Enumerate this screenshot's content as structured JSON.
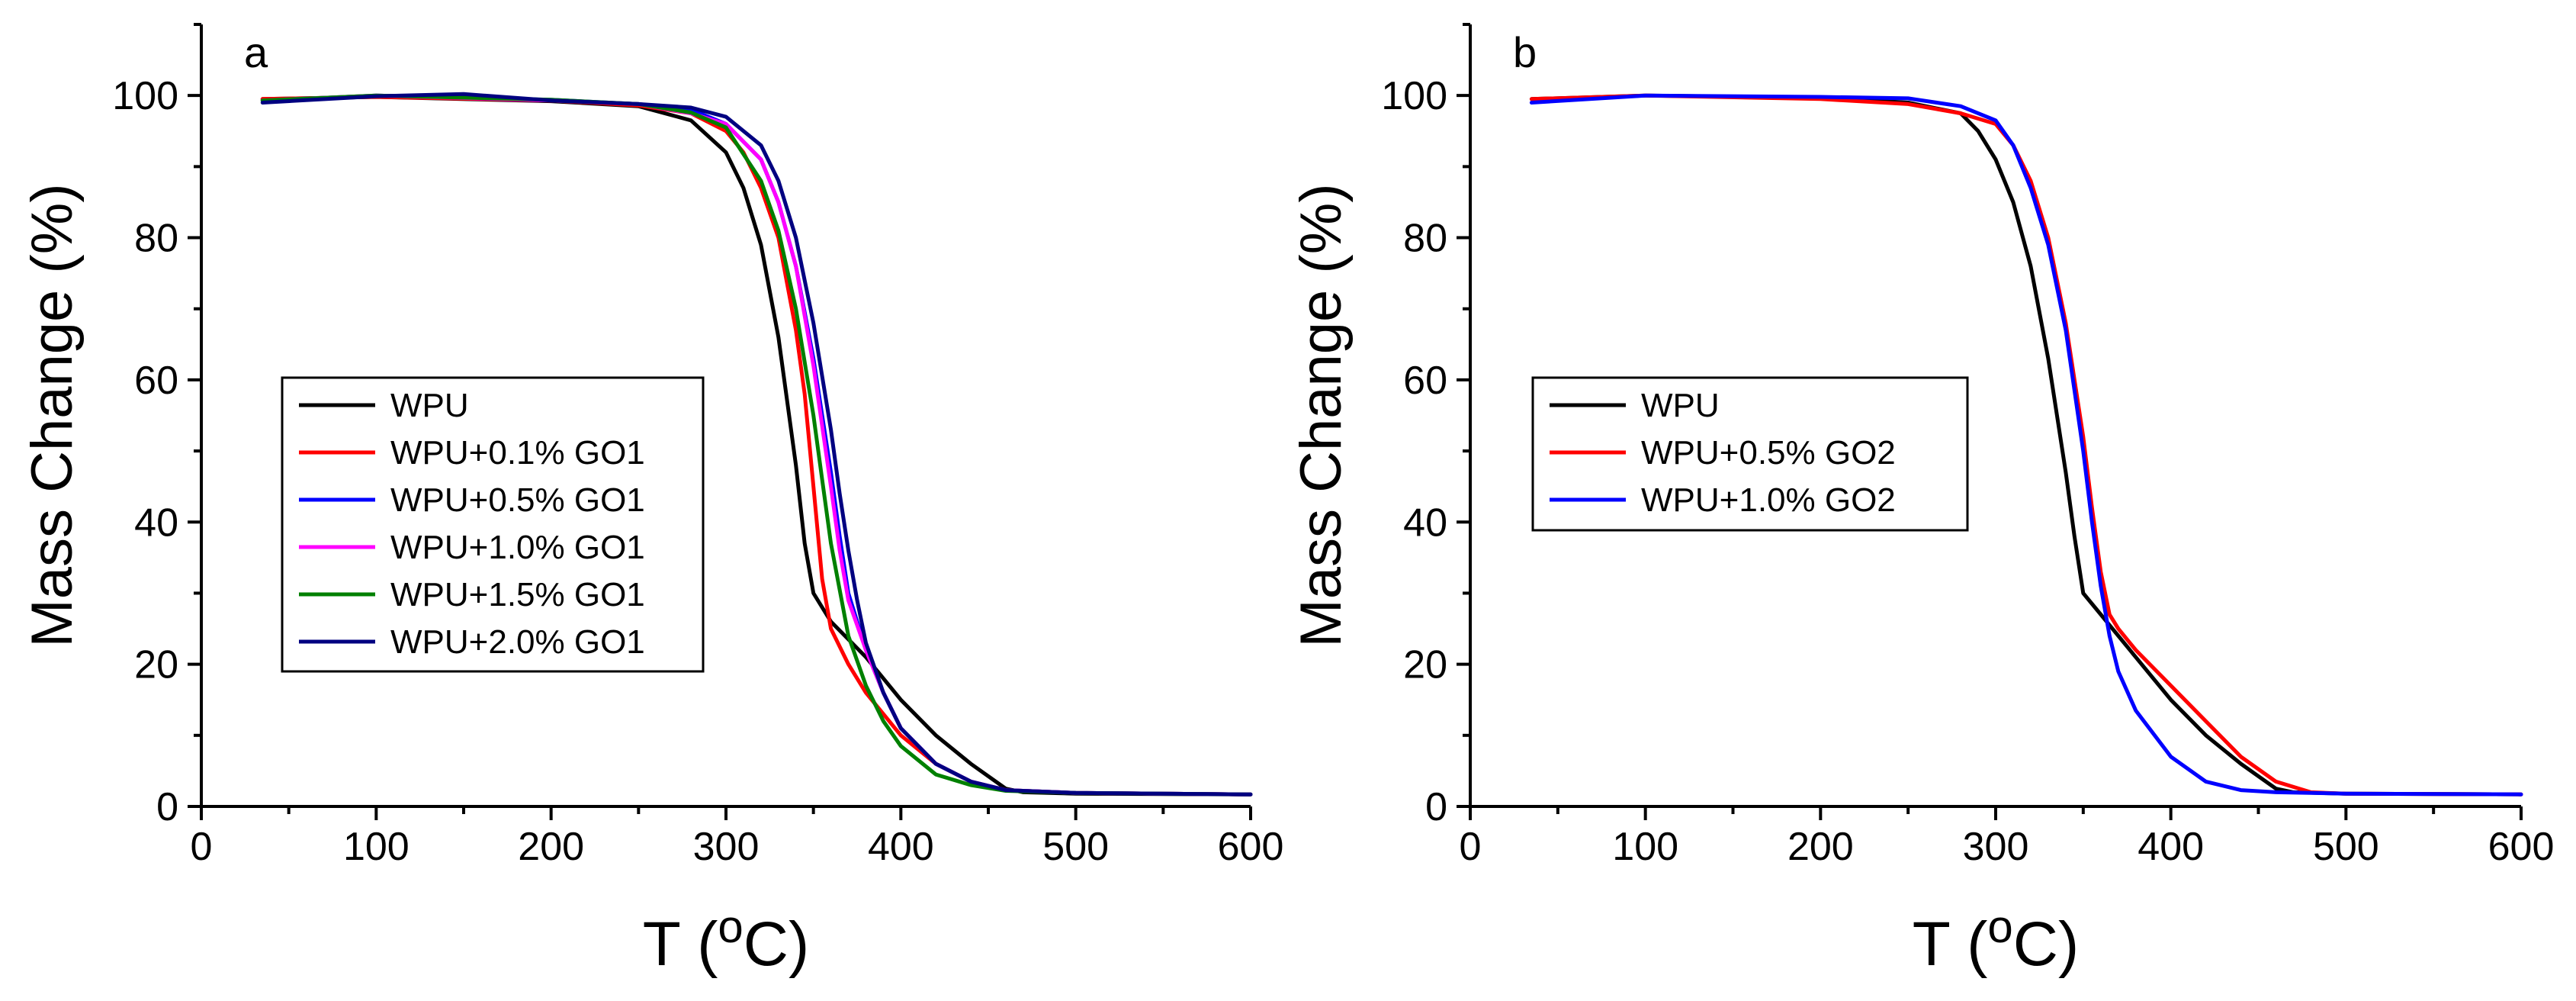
{
  "chart_data": [
    {
      "type": "line",
      "panel_label": "a",
      "xlabel": "T (oC)",
      "xlabel_parts": {
        "base": "T (",
        "sup": "o",
        "tail": "C)"
      },
      "ylabel": "Mass Change (%)",
      "xlim": [
        0,
        600
      ],
      "ylim": [
        0,
        110
      ],
      "xticks": [
        0,
        100,
        200,
        300,
        400,
        500,
        600
      ],
      "yticks": [
        0,
        20,
        40,
        60,
        80,
        100
      ],
      "grid": false,
      "legend_position": "center-left",
      "series": [
        {
          "name": "WPU",
          "color": "#000000",
          "x": [
            35,
            100,
            200,
            250,
            280,
            300,
            310,
            320,
            330,
            340,
            345,
            350,
            360,
            380,
            400,
            420,
            440,
            460,
            470,
            500,
            600
          ],
          "y": [
            99.5,
            99.8,
            99.2,
            98.5,
            96.5,
            92,
            87,
            79,
            66,
            48,
            37,
            30,
            26,
            21,
            15,
            10,
            6,
            2.5,
            2,
            1.8,
            1.7
          ]
        },
        {
          "name": "WPU+0.1% GO1",
          "color": "#ff0000",
          "x": [
            35,
            100,
            200,
            250,
            280,
            300,
            310,
            320,
            330,
            340,
            345,
            350,
            355,
            360,
            370,
            380,
            400,
            420,
            440,
            460,
            500,
            600
          ],
          "y": [
            99.5,
            99.8,
            99.3,
            98.6,
            97.5,
            95,
            92,
            87,
            80,
            67,
            58,
            45,
            32,
            25,
            20,
            16,
            10,
            6,
            3.5,
            2.3,
            1.9,
            1.7
          ]
        },
        {
          "name": "WPU+0.5% GO1",
          "color": "#0000ff",
          "x": [
            35,
            100,
            200,
            250,
            280,
            300,
            320,
            330,
            340,
            350,
            360,
            365,
            370,
            380,
            390,
            400,
            420,
            440,
            460,
            500,
            600
          ],
          "y": [
            99.3,
            100,
            99.4,
            98.8,
            98,
            96,
            91,
            85,
            76,
            63,
            47,
            38,
            30,
            22,
            16,
            11,
            6,
            3.5,
            2.3,
            1.9,
            1.7
          ]
        },
        {
          "name": "WPU+1.0% GO1",
          "color": "#ff00ff",
          "x": [
            35,
            100,
            200,
            250,
            280,
            300,
            320,
            330,
            340,
            350,
            360,
            365,
            370,
            380,
            390,
            400,
            420,
            440,
            460,
            500,
            600
          ],
          "y": [
            99.3,
            100,
            99.3,
            98.8,
            97.5,
            96,
            91,
            85,
            76,
            62,
            45,
            36,
            29,
            22,
            16,
            11,
            6,
            3.5,
            2.3,
            1.9,
            1.7
          ]
        },
        {
          "name": "WPU+1.5% GO1",
          "color": "#008000",
          "x": [
            35,
            100,
            200,
            250,
            280,
            300,
            320,
            330,
            340,
            350,
            355,
            360,
            370,
            380,
            390,
            400,
            420,
            440,
            460,
            500,
            600
          ],
          "y": [
            99.3,
            100,
            99.4,
            98.8,
            97.6,
            95.5,
            88,
            81,
            70,
            55,
            46,
            37,
            24,
            17,
            12,
            8.5,
            4.5,
            3,
            2.2,
            1.9,
            1.7
          ]
        },
        {
          "name": "WPU+2.0% GO1",
          "color": "#000080",
          "x": [
            35,
            100,
            150,
            200,
            250,
            280,
            300,
            320,
            330,
            340,
            350,
            360,
            365,
            370,
            375,
            380,
            390,
            400,
            420,
            440,
            460,
            500,
            600
          ],
          "y": [
            99,
            99.9,
            100.2,
            99.3,
            98.8,
            98.3,
            97,
            93,
            88,
            80,
            68,
            53,
            44,
            36,
            29,
            23,
            16,
            11,
            6,
            3.5,
            2.3,
            1.9,
            1.7
          ]
        }
      ]
    },
    {
      "type": "line",
      "panel_label": "b",
      "xlabel": "T (oC)",
      "xlabel_parts": {
        "base": "T (",
        "sup": "o",
        "tail": "C)"
      },
      "ylabel": "Mass Change (%)",
      "xlim": [
        0,
        600
      ],
      "ylim": [
        0,
        110
      ],
      "xticks": [
        0,
        100,
        200,
        300,
        400,
        500,
        600
      ],
      "yticks": [
        0,
        20,
        40,
        60,
        80,
        100
      ],
      "grid": false,
      "legend_position": "center-left",
      "series": [
        {
          "name": "WPU",
          "color": "#000000",
          "x": [
            35,
            100,
            200,
            250,
            280,
            290,
            300,
            310,
            320,
            330,
            340,
            345,
            350,
            360,
            380,
            400,
            420,
            440,
            460,
            470,
            500,
            600
          ],
          "y": [
            99.5,
            100,
            99.7,
            99,
            97.5,
            95,
            91,
            85,
            76,
            63,
            47,
            38,
            30,
            27,
            21,
            15,
            10,
            6,
            2.5,
            2,
            1.8,
            1.7
          ]
        },
        {
          "name": "WPU+0.5% GO2",
          "color": "#ff0000",
          "x": [
            35,
            100,
            200,
            250,
            280,
            300,
            310,
            320,
            330,
            340,
            350,
            355,
            360,
            365,
            370,
            380,
            400,
            420,
            440,
            460,
            480,
            500,
            600
          ],
          "y": [
            99.5,
            100,
            99.5,
            98.8,
            97.5,
            96,
            93,
            88,
            80,
            68,
            52,
            42,
            33,
            27,
            25,
            22,
            17,
            12,
            7,
            3.5,
            2,
            1.8,
            1.7
          ]
        },
        {
          "name": "WPU+1.0% GO2",
          "color": "#0000ff",
          "x": [
            35,
            100,
            200,
            250,
            280,
            300,
            310,
            320,
            330,
            340,
            350,
            355,
            360,
            365,
            370,
            380,
            400,
            420,
            440,
            460,
            500,
            600
          ],
          "y": [
            99,
            100,
            99.8,
            99.6,
            98.5,
            96.5,
            93,
            87,
            79,
            67,
            50,
            40,
            31,
            24,
            19,
            13.5,
            7,
            3.5,
            2.3,
            2,
            1.8,
            1.7
          ]
        }
      ]
    }
  ]
}
